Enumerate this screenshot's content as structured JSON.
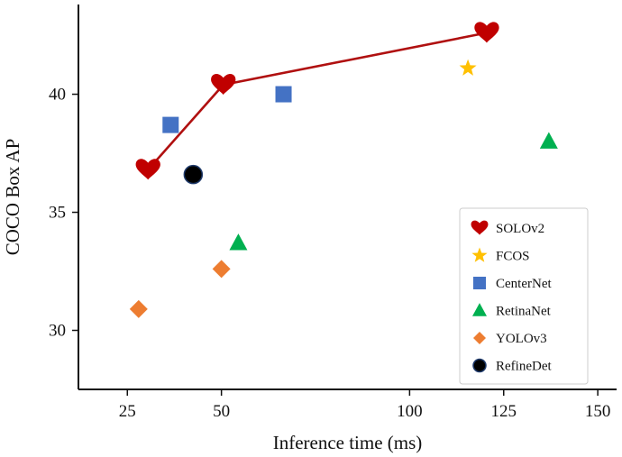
{
  "chart_data": {
    "type": "scatter",
    "title": "",
    "xlabel": "Inference time (ms)",
    "ylabel": "COCO Box AP",
    "xlim": [
      12.0,
      155.0
    ],
    "ylim": [
      27.5,
      43.8
    ],
    "xticks": [
      25,
      50,
      100,
      125,
      150
    ],
    "xtick_labels": [
      "25",
      "50",
      "100",
      "125",
      "150"
    ],
    "yticks": [
      30,
      35,
      40
    ],
    "ytick_labels": [
      "30",
      "35",
      "40"
    ],
    "legend_position": "bottom-right",
    "series": [
      {
        "name": "SOLOv2",
        "marker": "heart",
        "color": "#c00000",
        "line": true,
        "x": [
          30.5,
          50.5,
          120.5
        ],
        "y": [
          36.8,
          40.4,
          42.6
        ]
      },
      {
        "name": "FCOS",
        "marker": "star",
        "color": "#ffc000",
        "line": false,
        "x": [
          115.5
        ],
        "y": [
          41.1
        ]
      },
      {
        "name": "CenterNet",
        "marker": "square",
        "color": "#4472c4",
        "line": false,
        "x": [
          36.5,
          66.5
        ],
        "y": [
          38.7,
          40.0
        ]
      },
      {
        "name": "RetinaNet",
        "marker": "triangle",
        "color": "#00b050",
        "line": false,
        "x": [
          54.5,
          137.0
        ],
        "y": [
          33.7,
          38.0
        ]
      },
      {
        "name": "YOLOv3",
        "marker": "diamond",
        "color": "#ed7d31",
        "line": false,
        "x": [
          28.0,
          50.0
        ],
        "y": [
          30.9,
          32.6
        ]
      },
      {
        "name": "RefineDet",
        "marker": "circle",
        "color": "#000000",
        "line": false,
        "x": [
          42.5
        ],
        "y": [
          36.6
        ]
      }
    ]
  }
}
